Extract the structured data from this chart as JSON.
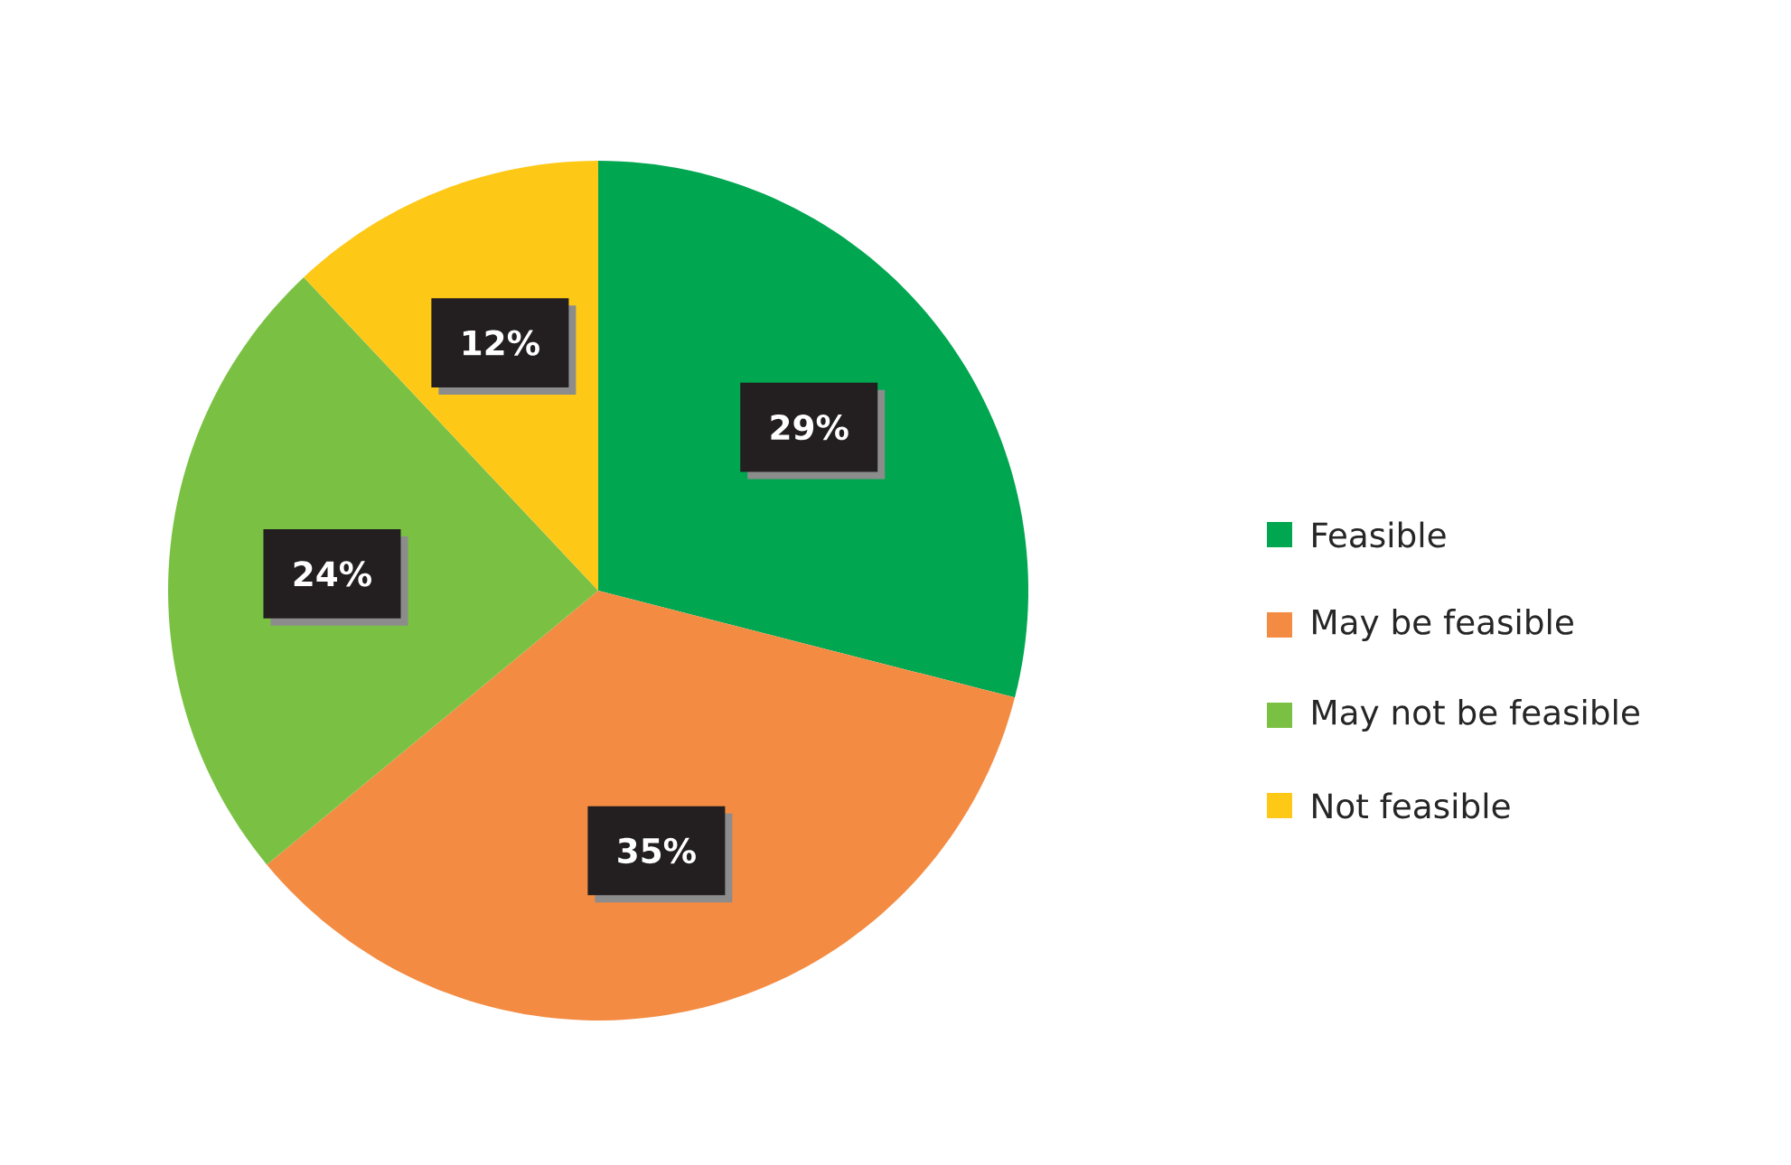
{
  "chart_data": {
    "type": "pie",
    "categories": [
      "Feasible",
      "May be feasible",
      "May not be feasible",
      "Not feasible"
    ],
    "values": [
      29,
      35,
      24,
      12
    ],
    "colors": [
      "#00a650",
      "#f48b42",
      "#7ac143",
      "#fec817"
    ],
    "value_labels": [
      "29%",
      "35%",
      "24%",
      "12%"
    ],
    "legend": "right"
  }
}
